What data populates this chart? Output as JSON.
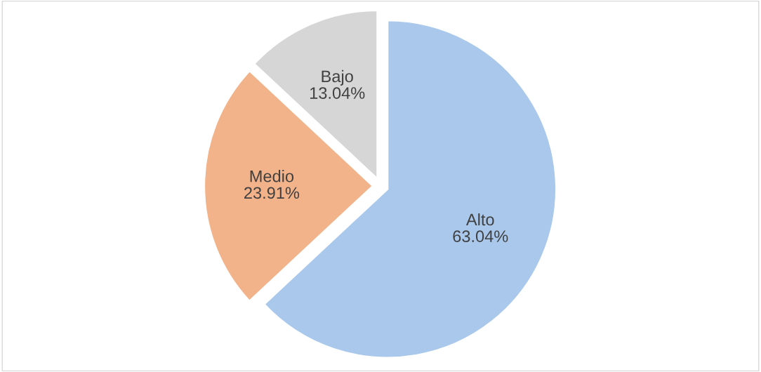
{
  "chart_data": {
    "type": "pie",
    "categories": [
      "Alto",
      "Medio",
      "Bajo"
    ],
    "values": [
      63.04,
      23.91,
      13.04
    ],
    "colors": [
      "#a9c8ec",
      "#f3b38a",
      "#d6d6d6"
    ],
    "value_labels": [
      "63.04%",
      "23.91%",
      "13.04%"
    ],
    "legend": false
  }
}
